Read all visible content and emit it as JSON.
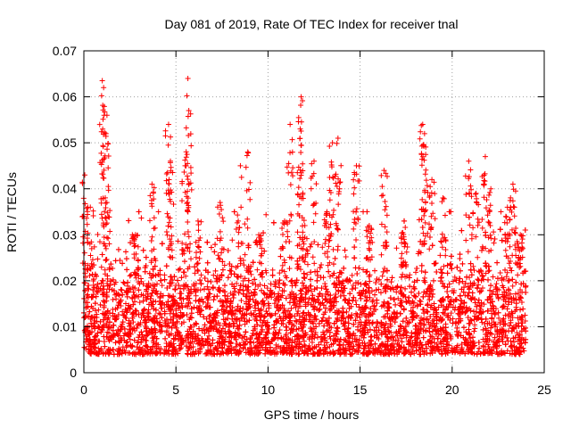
{
  "chart_data": {
    "type": "scatter",
    "title": "Day 081 of 2019, Rate Of TEC Index for receiver tnal",
    "xlabel": "GPS time / hours",
    "ylabel": "ROTI / TECUs",
    "xlim": [
      0,
      25
    ],
    "ylim": [
      0,
      0.07
    ],
    "xticks": [
      "0",
      "5",
      "10",
      "15",
      "20",
      "25"
    ],
    "yticks": [
      "0",
      "0.01",
      "0.02",
      "0.03",
      "0.04",
      "0.05",
      "0.06",
      "0.07"
    ],
    "grid": true,
    "marker": "+",
    "series_color": "#ff0000",
    "series": [
      {
        "name": "ROTI",
        "baseline_range": [
          0.004,
          0.025
        ],
        "samples_per_hour": 260,
        "time_range": [
          0,
          24
        ],
        "peaks": [
          {
            "x": 0.05,
            "y": 0.043
          },
          {
            "x": 0.35,
            "y": 0.036
          },
          {
            "x": 1.0,
            "y": 0.0635
          },
          {
            "x": 1.1,
            "y": 0.056
          },
          {
            "x": 1.2,
            "y": 0.052
          },
          {
            "x": 1.25,
            "y": 0.037
          },
          {
            "x": 2.8,
            "y": 0.03
          },
          {
            "x": 3.7,
            "y": 0.041
          },
          {
            "x": 4.6,
            "y": 0.054
          },
          {
            "x": 4.7,
            "y": 0.046
          },
          {
            "x": 5.5,
            "y": 0.045
          },
          {
            "x": 5.65,
            "y": 0.064
          },
          {
            "x": 5.7,
            "y": 0.057
          },
          {
            "x": 6.2,
            "y": 0.033
          },
          {
            "x": 7.4,
            "y": 0.037
          },
          {
            "x": 8.5,
            "y": 0.045
          },
          {
            "x": 8.9,
            "y": 0.048
          },
          {
            "x": 9.5,
            "y": 0.03
          },
          {
            "x": 10.9,
            "y": 0.033
          },
          {
            "x": 11.2,
            "y": 0.054
          },
          {
            "x": 11.8,
            "y": 0.06
          },
          {
            "x": 11.75,
            "y": 0.053
          },
          {
            "x": 12.0,
            "y": 0.032
          },
          {
            "x": 12.5,
            "y": 0.046
          },
          {
            "x": 13.2,
            "y": 0.035
          },
          {
            "x": 13.5,
            "y": 0.05
          },
          {
            "x": 13.8,
            "y": 0.051
          },
          {
            "x": 14.8,
            "y": 0.045
          },
          {
            "x": 15.5,
            "y": 0.032
          },
          {
            "x": 16.3,
            "y": 0.044
          },
          {
            "x": 17.4,
            "y": 0.033
          },
          {
            "x": 18.4,
            "y": 0.054
          },
          {
            "x": 18.5,
            "y": 0.052
          },
          {
            "x": 18.9,
            "y": 0.042
          },
          {
            "x": 19.5,
            "y": 0.038
          },
          {
            "x": 20.9,
            "y": 0.046
          },
          {
            "x": 21.3,
            "y": 0.039
          },
          {
            "x": 21.8,
            "y": 0.047
          },
          {
            "x": 22.1,
            "y": 0.04
          },
          {
            "x": 23.0,
            "y": 0.036
          },
          {
            "x": 23.3,
            "y": 0.041
          },
          {
            "x": 23.7,
            "y": 0.03
          }
        ]
      }
    ]
  }
}
